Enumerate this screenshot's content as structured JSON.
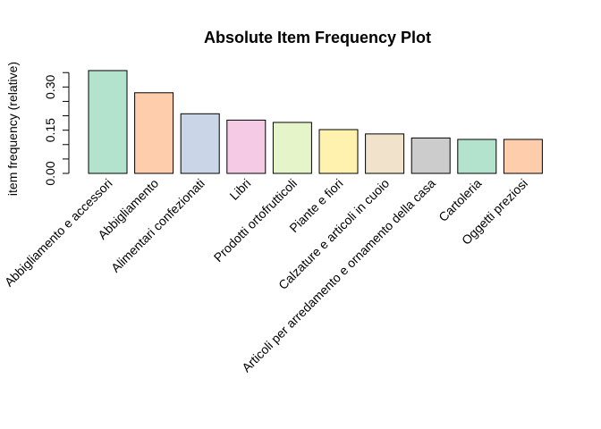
{
  "chart_data": {
    "type": "bar",
    "title": "Absolute Item Frequency Plot",
    "ylabel": "item frequency (relative)",
    "xlabel": "",
    "ylim": [
      0,
      0.36
    ],
    "yticks": [
      0.0,
      0.05,
      0.1,
      0.15,
      0.2,
      0.25,
      0.3,
      0.35
    ],
    "ytick_labels": [
      "0.00",
      "",
      "",
      "0.15",
      "",
      "",
      "0.30",
      ""
    ],
    "categories": [
      "Abbigliamento e accessori",
      "Abbigliamento",
      "Alimentari confezionati",
      "Libri",
      "Prodotti ortofrutticoli",
      "Piante e fiori",
      "Calzature e articoli in cuoio",
      "Articoli per arredamento e ornamento della casa",
      "Cartoleria",
      "Oggetti preziosi"
    ],
    "values": [
      0.357,
      0.28,
      0.207,
      0.185,
      0.177,
      0.152,
      0.137,
      0.123,
      0.118,
      0.118
    ],
    "colors": [
      "#b3e2cd",
      "#fdcdac",
      "#cbd5e8",
      "#f4cae4",
      "#e6f5c9",
      "#fff2ae",
      "#f1e2cc",
      "#cccccc",
      "#b3e2cd",
      "#fdcdac"
    ],
    "grid": false,
    "legend": "none"
  }
}
